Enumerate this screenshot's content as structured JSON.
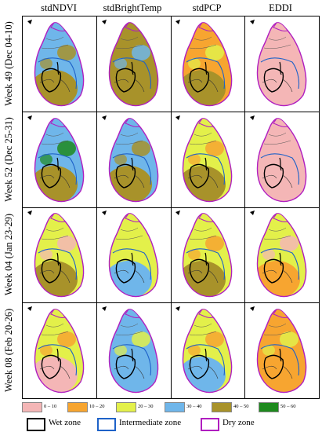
{
  "columns": [
    "stdNDVI",
    "stdBrightTemp",
    "stdPCP",
    "EDDI"
  ],
  "rows": [
    "Week 49 (Dec 04-10)",
    "Week 52 (Dec 25-31)",
    "Week 04 (Jan 23-29)",
    "Week 08 (Feb 20-26)"
  ],
  "legend": {
    "classes": [
      {
        "label": "0 – 10",
        "color": "#f4b6b6"
      },
      {
        "label": "10 – 20",
        "color": "#f7a530"
      },
      {
        "label": "20 – 30",
        "color": "#e3f04a"
      },
      {
        "label": "30 – 40",
        "color": "#6fb6ea"
      },
      {
        "label": "40 – 50",
        "color": "#a8922a"
      },
      {
        "label": "50 – 60",
        "color": "#1e8a1e"
      }
    ],
    "zones": [
      {
        "label": "Wet zone",
        "color": "#000000"
      },
      {
        "label": "Intermediate zone",
        "color": "#1e62c8"
      },
      {
        "label": "Dry zone",
        "color": "#b01ec0"
      }
    ]
  },
  "maps": [
    {
      "base": "#6fb6ea",
      "south": "#a8922a",
      "patch": "#a8922a"
    },
    {
      "base": "#a8922a",
      "south": "#a8922a",
      "patch": "#6fb6ea"
    },
    {
      "base": "#f7a530",
      "south": "#a8922a",
      "patch": "#e3f04a"
    },
    {
      "base": "#f4b6b6",
      "south": "#f4b6b6",
      "patch": "#f4b6b6"
    },
    {
      "base": "#6fb6ea",
      "south": "#a8922a",
      "patch": "#1e8a1e"
    },
    {
      "base": "#6fb6ea",
      "south": "#a8922a",
      "patch": "#a8922a"
    },
    {
      "base": "#e3f04a",
      "south": "#a8922a",
      "patch": "#f7a530"
    },
    {
      "base": "#f4b6b6",
      "south": "#f4b6b6",
      "patch": "#f4b6b6"
    },
    {
      "base": "#e3f04a",
      "south": "#a8922a",
      "patch": "#f4b6b6"
    },
    {
      "base": "#e3f04a",
      "south": "#6fb6ea",
      "patch": "#e3f04a"
    },
    {
      "base": "#e3f04a",
      "south": "#a8922a",
      "patch": "#f7a530"
    },
    {
      "base": "#e3f04a",
      "south": "#f7a530",
      "patch": "#f4b6b6"
    },
    {
      "base": "#e3f04a",
      "south": "#f4b6b6",
      "patch": "#f7a530"
    },
    {
      "base": "#6fb6ea",
      "south": "#6fb6ea",
      "patch": "#e3f04a"
    },
    {
      "base": "#e3f04a",
      "south": "#6fb6ea",
      "patch": "#f7a530"
    },
    {
      "base": "#f7a530",
      "south": "#f7a530",
      "patch": "#e3f04a"
    }
  ]
}
